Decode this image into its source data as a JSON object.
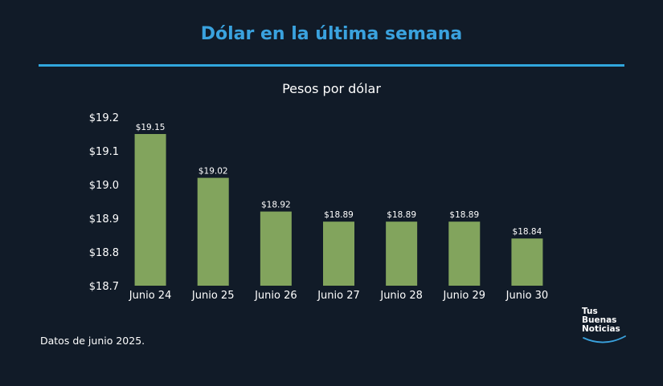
{
  "header": {
    "title": "Dólar en la última semana",
    "subtitle": "Pesos por dólar"
  },
  "footer": {
    "note": "Datos de junio 2025.",
    "logo_lines": [
      "Tus",
      "Buenas",
      "Noticias"
    ]
  },
  "colors": {
    "background": "#111b28",
    "title": "#3aa2de",
    "rule": "#31a7dd",
    "bar": "#82a45d",
    "text": "#ffffff",
    "logo_arc": "#3aa2de"
  },
  "chart_data": {
    "type": "bar",
    "title": "Pesos por dólar",
    "xlabel": "",
    "ylabel": "",
    "categories": [
      "Junio 24",
      "Junio 25",
      "Junio 26",
      "Junio 27",
      "Junio 28",
      "Junio 29",
      "Junio 30"
    ],
    "values": [
      19.15,
      19.02,
      18.92,
      18.89,
      18.89,
      18.89,
      18.84
    ],
    "value_labels": [
      "$19.15",
      "$19.02",
      "$18.92",
      "$18.89",
      "$18.89",
      "$18.89",
      "$18.84"
    ],
    "ylim": [
      18.7,
      19.2
    ],
    "yticks": [
      18.7,
      18.8,
      18.9,
      19.0,
      19.1,
      19.2
    ],
    "ytick_labels": [
      "$18.7",
      "$18.8",
      "$18.9",
      "$19.0",
      "$19.1",
      "$19.2"
    ],
    "grid": false,
    "legend": "none"
  }
}
